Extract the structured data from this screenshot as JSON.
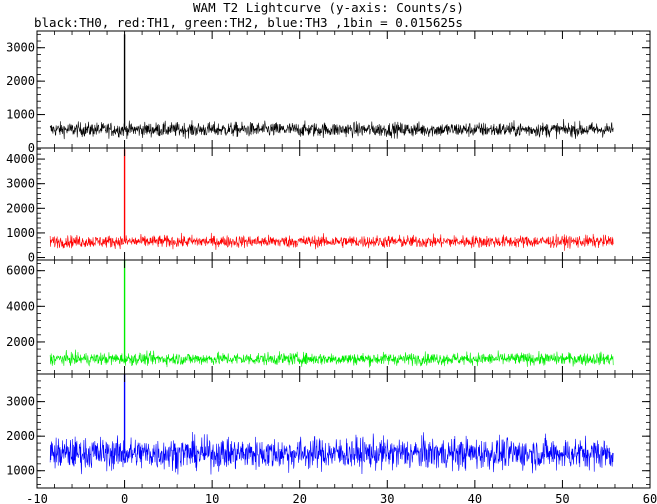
{
  "title": "WAM T2 Lightcurve (y-axis: Counts/s)",
  "subtitle": "black:TH0, red:TH1, green:TH2, blue:TH3 ,1bin = 0.015625s",
  "chart_data": [
    {
      "type": "line",
      "series": [
        {
          "name": "TH0",
          "color": "#000000",
          "baseline": 550,
          "noise": 200,
          "burst_peak": 3400
        }
      ],
      "x_range": [
        -8.5,
        55.8
      ],
      "burst_x": 0,
      "ylim": [
        0,
        3500
      ],
      "yticks": [
        0,
        1000,
        2000,
        3000
      ],
      "xlim": [
        -10,
        60
      ],
      "grid": false
    },
    {
      "type": "line",
      "series": [
        {
          "name": "TH1",
          "color": "#ff0000",
          "baseline": 650,
          "noise": 230,
          "burst_peak": 4400
        }
      ],
      "x_range": [
        -8.5,
        55.8
      ],
      "burst_x": 0,
      "ylim": [
        -100,
        4450
      ],
      "yticks": [
        0,
        1000,
        2000,
        3000,
        4000
      ],
      "xlim": [
        -10,
        60
      ],
      "grid": false
    },
    {
      "type": "line",
      "series": [
        {
          "name": "TH2",
          "color": "#00ee00",
          "baseline": 1050,
          "noise": 320,
          "burst_peak": 6600
        }
      ],
      "x_range": [
        -8.5,
        55.8
      ],
      "burst_x": 0,
      "ylim": [
        200,
        6600
      ],
      "yticks": [
        2000,
        4000,
        6000
      ],
      "xlim": [
        -10,
        60
      ],
      "grid": false
    },
    {
      "type": "line",
      "series": [
        {
          "name": "TH3",
          "color": "#0000ff",
          "baseline": 1500,
          "noise": 420,
          "burst_peak": 3800
        }
      ],
      "x_range": [
        -8.5,
        55.8
      ],
      "burst_x": 0,
      "ylim": [
        500,
        3800
      ],
      "yticks": [
        1000,
        2000,
        3000
      ],
      "xlim": [
        -10,
        60
      ],
      "xticks": [
        -10,
        0,
        10,
        20,
        30,
        40,
        50,
        60
      ],
      "grid": false
    }
  ]
}
